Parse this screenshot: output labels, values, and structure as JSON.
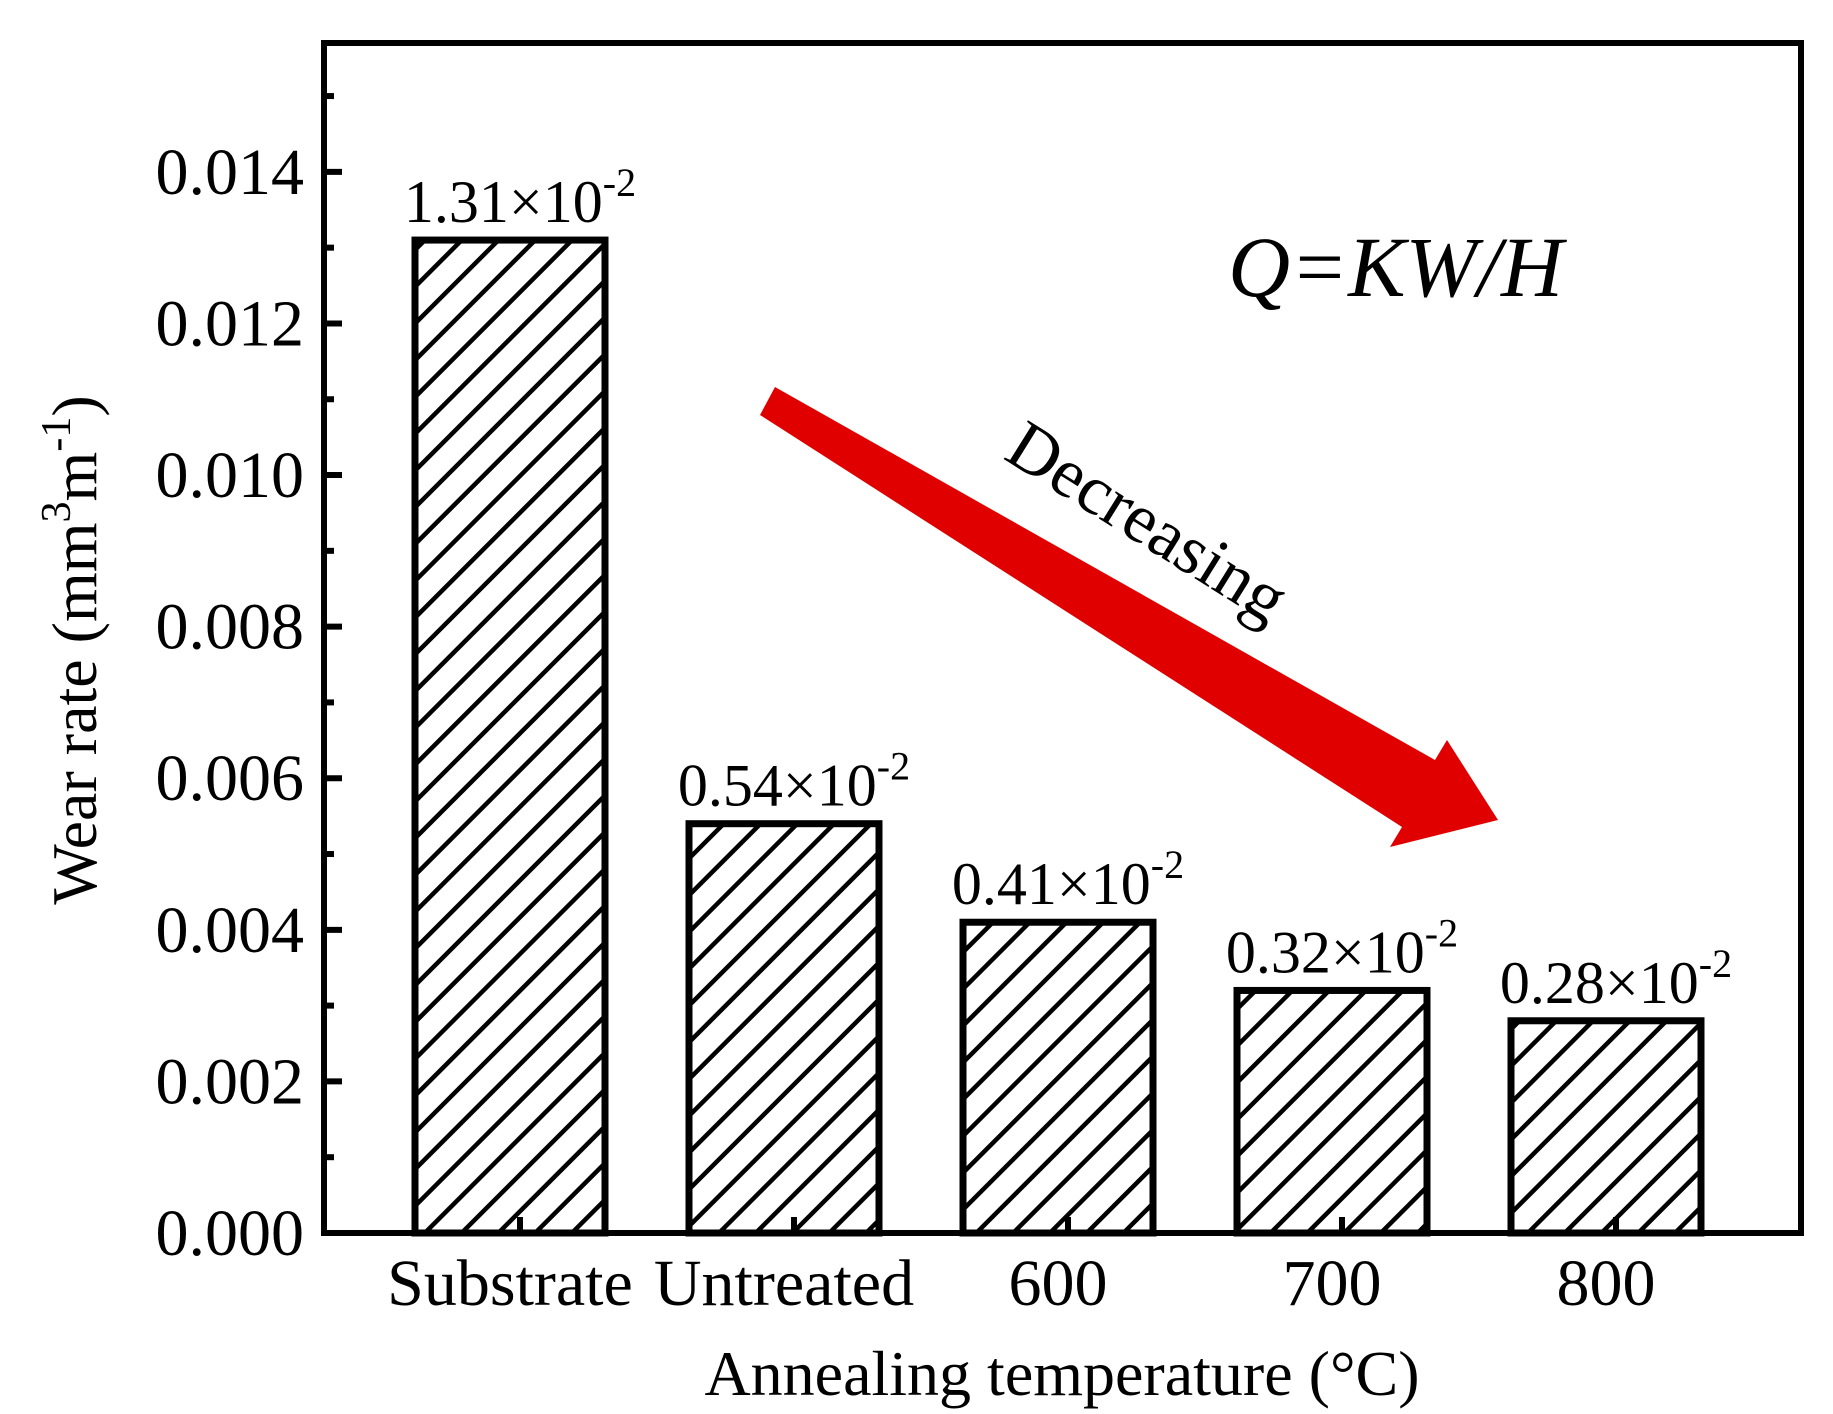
{
  "chart_data": {
    "type": "bar",
    "categories": [
      "Substrate",
      "Untreated",
      "600",
      "700",
      "800"
    ],
    "values": [
      0.0131,
      0.0054,
      0.0041,
      0.0032,
      0.0028
    ],
    "data_labels": [
      {
        "base": "1.31×10",
        "exp": "-2"
      },
      {
        "base": "0.54×10",
        "exp": "-2"
      },
      {
        "base": "0.41×10",
        "exp": "-2"
      },
      {
        "base": "0.32×10",
        "exp": "-2"
      },
      {
        "base": "0.28×10",
        "exp": "-2"
      }
    ],
    "xlabel": "Annealing temperature (°C)",
    "ylabel": {
      "prefix": "Wear rate (mm",
      "sup1": "3",
      "mid": "m",
      "sup2": "-1",
      "suffix": ")"
    },
    "ylim": [
      0,
      0.0157
    ],
    "yticks": [
      "0.000",
      "0.002",
      "0.004",
      "0.006",
      "0.008",
      "0.010",
      "0.012",
      "0.014"
    ],
    "ytick_values": [
      0,
      0.002,
      0.004,
      0.006,
      0.008,
      0.01,
      0.012,
      0.014
    ],
    "bar_pattern": "diagonal-hatch",
    "bar_edge_color": "#000000",
    "annotations": {
      "formula": "Q=KW/H",
      "trend_label": "Decreasing",
      "trend_arrow_color": "#e00000"
    }
  }
}
